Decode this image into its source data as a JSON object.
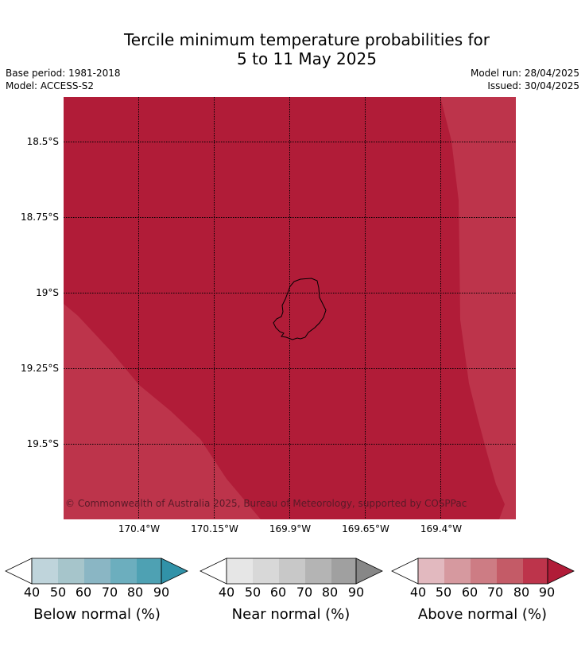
{
  "title_line1": "Tercile minimum temperature probabilities for",
  "title_line2": "5 to 11 May 2025",
  "base_period": "Base period: 1981-2018",
  "model": "Model: ACCESS-S2",
  "model_run": "Model run: 28/04/2025",
  "issued": "Issued: 30/04/2025",
  "map": {
    "latitude_labels": [
      "18.5°S",
      "18.75°S",
      "19°S",
      "19.25°S",
      "19.5°S"
    ],
    "longitude_labels": [
      "170.4°W",
      "170.15°W",
      "169.9°W",
      "169.65°W",
      "169.4°W"
    ],
    "copyright": "© Commonwealth of Australia 2025, Bureau of Meteorology, supported by COSPPac",
    "island_icon": "island-coastline-icon",
    "colors": {
      "above_90": "#b11c38",
      "above_80": "#bd344b"
    }
  },
  "legends": [
    {
      "title": "Below normal (%)",
      "ticks": [
        "40",
        "50",
        "60",
        "70",
        "80",
        "90"
      ],
      "colors": [
        "#bfd4db",
        "#a6c5cb",
        "#8ab6c4",
        "#6caebe",
        "#4ea1b3",
        "#3192a8"
      ]
    },
    {
      "title": "Near normal (%)",
      "ticks": [
        "40",
        "50",
        "60",
        "70",
        "80",
        "90"
      ],
      "colors": [
        "#e6e6e6",
        "#d8d8d8",
        "#c8c8c8",
        "#b4b4b4",
        "#a0a0a0",
        "#878787"
      ]
    },
    {
      "title": "Above normal (%)",
      "ticks": [
        "40",
        "50",
        "60",
        "70",
        "80",
        "90"
      ],
      "colors": [
        "#e2b9bf",
        "#d6999f",
        "#cd7c84",
        "#c45b67",
        "#bd344b",
        "#b11c38"
      ]
    }
  ]
}
